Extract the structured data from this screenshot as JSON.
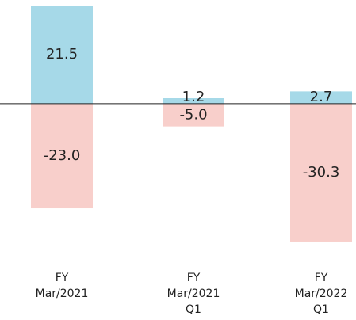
{
  "chart_data": {
    "type": "bar",
    "stacked": true,
    "categories": [
      [
        "FY",
        "Mar/2021"
      ],
      [
        "FY",
        "Mar/2021",
        "Q1"
      ],
      [
        "FY",
        "Mar/2022",
        "Q1"
      ]
    ],
    "series": [
      {
        "color": "#a6d9e8",
        "values": [
          21.5,
          1.2,
          2.7
        ]
      },
      {
        "color": "#f8cfcb",
        "values": [
          -23.0,
          -5.0,
          -30.3
        ],
        "value_labels": [
          "-23.0",
          "-5.0",
          "-30.3"
        ]
      }
    ],
    "ylim": [
      -31,
      22
    ]
  }
}
